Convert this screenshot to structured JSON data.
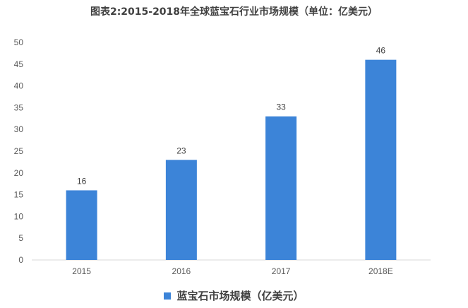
{
  "chart_data": {
    "type": "bar",
    "title": "图表2:2015-2018年全球蓝宝石行业市场规模（单位：亿美元）",
    "categories": [
      "2015",
      "2016",
      "2017",
      "2018E"
    ],
    "series": [
      {
        "name": "蓝宝石市场规模（亿美元）",
        "values": [
          16,
          23,
          33,
          46
        ],
        "color": "#3c84d8"
      }
    ],
    "ylim": [
      0,
      50
    ],
    "yticks": [
      0,
      5,
      10,
      15,
      20,
      25,
      30,
      35,
      40,
      45,
      50
    ],
    "grid": false,
    "legend_position": "bottom",
    "xlabel": "",
    "ylabel": ""
  }
}
